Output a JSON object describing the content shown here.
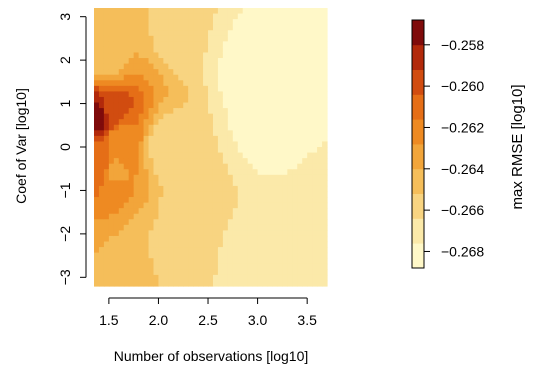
{
  "chart_data": {
    "type": "heatmap",
    "xlabel": "Number of observations [log10]",
    "ylabel": "Coef of Var [log10]",
    "xlim": [
      1.35,
      3.7
    ],
    "ylim": [
      -3.2,
      3.2
    ],
    "x_ticks": [
      1.5,
      2.0,
      2.5,
      3.0,
      3.5
    ],
    "x_tick_labels": [
      "1.5",
      "2.0",
      "2.5",
      "3.0",
      "3.5"
    ],
    "y_ticks": [
      -3,
      -2,
      -1,
      0,
      1,
      2,
      3
    ],
    "y_tick_labels": [
      "−3",
      "−2",
      "−1",
      "0",
      "1",
      "2",
      "3"
    ],
    "colorbar": {
      "label": "max RMSE [log10]",
      "range": [
        -0.2688,
        -0.2568
      ],
      "ticks": [
        -0.258,
        -0.26,
        -0.262,
        -0.264,
        -0.266,
        -0.268
      ],
      "tick_labels": [
        "−0.258",
        "−0.260",
        "−0.262",
        "−0.264",
        "−0.266",
        "−0.268"
      ],
      "palette": [
        "#fff8c8",
        "#fbe9a9",
        "#f8d481",
        "#f5be5a",
        "#f2a53a",
        "#ee8a22",
        "#e56e17",
        "#d14c10",
        "#b2290b",
        "#7f0b0b"
      ]
    },
    "surface_points": [
      {
        "x": 1.42,
        "y": 0.7,
        "value": -0.257
      },
      {
        "x": 1.5,
        "y": 0.8,
        "value": -0.26
      },
      {
        "x": 1.42,
        "y": -0.4,
        "value": -0.2605
      },
      {
        "x": 1.6,
        "y": 0.2,
        "value": -0.262
      },
      {
        "x": 1.55,
        "y": -0.5,
        "value": -0.263
      },
      {
        "x": 1.6,
        "y": 2.7,
        "value": -0.264
      },
      {
        "x": 1.45,
        "y": 2.0,
        "value": -0.2645
      },
      {
        "x": 1.45,
        "y": -2.9,
        "value": -0.264
      },
      {
        "x": 1.9,
        "y": -2.8,
        "value": -0.2652
      },
      {
        "x": 2.2,
        "y": -2.2,
        "value": -0.2655
      },
      {
        "x": 2.1,
        "y": 0.0,
        "value": -0.266
      },
      {
        "x": 2.4,
        "y": -1.0,
        "value": -0.2663
      },
      {
        "x": 2.2,
        "y": 2.8,
        "value": -0.2663
      },
      {
        "x": 3.0,
        "y": 1.8,
        "value": -0.2685
      },
      {
        "x": 3.1,
        "y": 0.5,
        "value": -0.2682
      },
      {
        "x": 3.0,
        "y": -2.8,
        "value": -0.2675
      },
      {
        "x": 3.6,
        "y": -1.5,
        "value": -0.2672
      }
    ]
  }
}
